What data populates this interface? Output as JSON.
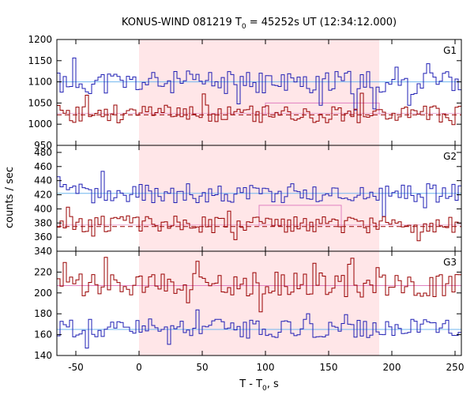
{
  "chart_data": {
    "type": "line",
    "title": "KONUS-WIND 081219 T",
    "title_sub": "0",
    "title_tail": " = 45252s UT (12:34:12.000)",
    "ylabel": "counts / sec",
    "xlabel": "T - T",
    "xlabel_sub": "0",
    "xlabel_tail": ", s",
    "xlim": [
      -65,
      255
    ],
    "xticks": [
      "-50",
      "0",
      "50",
      "100",
      "150",
      "200",
      "250"
    ],
    "xtick_values": [
      -50,
      0,
      50,
      100,
      150,
      200,
      250
    ],
    "shaded_interval": [
      0,
      190
    ],
    "colors": {
      "blue": "#1f1fb4",
      "red": "#990000",
      "bg_blue": "#6fb6ef",
      "bg_red": "#990000",
      "bg_pink": "#e080c0",
      "shade": "#ffe6e8"
    },
    "panels": [
      {
        "label": "G1",
        "ylim": [
          950,
          1200
        ],
        "yticks": [
          "950",
          "1000",
          "1050",
          "1100",
          "1150",
          "1200"
        ],
        "ytick_values": [
          950,
          1000,
          1050,
          1100,
          1150,
          1200
        ],
        "top_series": {
          "base": 1098,
          "amp": 28,
          "seed": 11
        },
        "bottom_series": {
          "base": 1025,
          "amp": 22,
          "seed": 23
        },
        "bg_top": 1100,
        "bg_bottom": 1022,
        "bg_bottom_dashed": true,
        "bump_top": {
          "start": 100,
          "end": 190,
          "val": 1050
        }
      },
      {
        "label": "G2",
        "ylim": [
          340,
          490
        ],
        "yticks": [
          "340",
          "360",
          "380",
          "400",
          "420",
          "440",
          "460",
          "480"
        ],
        "ytick_values": [
          340,
          360,
          380,
          400,
          420,
          440,
          460,
          480
        ],
        "top_series": {
          "base": 422,
          "amp": 14,
          "seed": 37
        },
        "bottom_series": {
          "base": 378,
          "amp": 12,
          "seed": 51
        },
        "bg_top": 422,
        "bg_bottom": 375,
        "bg_bottom_dashed": true,
        "bump_top": {
          "start": 95,
          "end": 160,
          "val": 405
        }
      },
      {
        "label": "G3",
        "ylim": [
          140,
          240
        ],
        "yticks": [
          "140",
          "160",
          "180",
          "200",
          "220"
        ],
        "ytick_values": [
          140,
          160,
          180,
          200,
          220
        ],
        "top_series": {
          "base": 208,
          "amp": 12,
          "seed": 73
        },
        "bottom_series": {
          "base": 166,
          "amp": 9,
          "seed": 89
        },
        "bg_top": 207,
        "bg_bottom": 165,
        "bg_bottom_dashed": false
      }
    ]
  }
}
